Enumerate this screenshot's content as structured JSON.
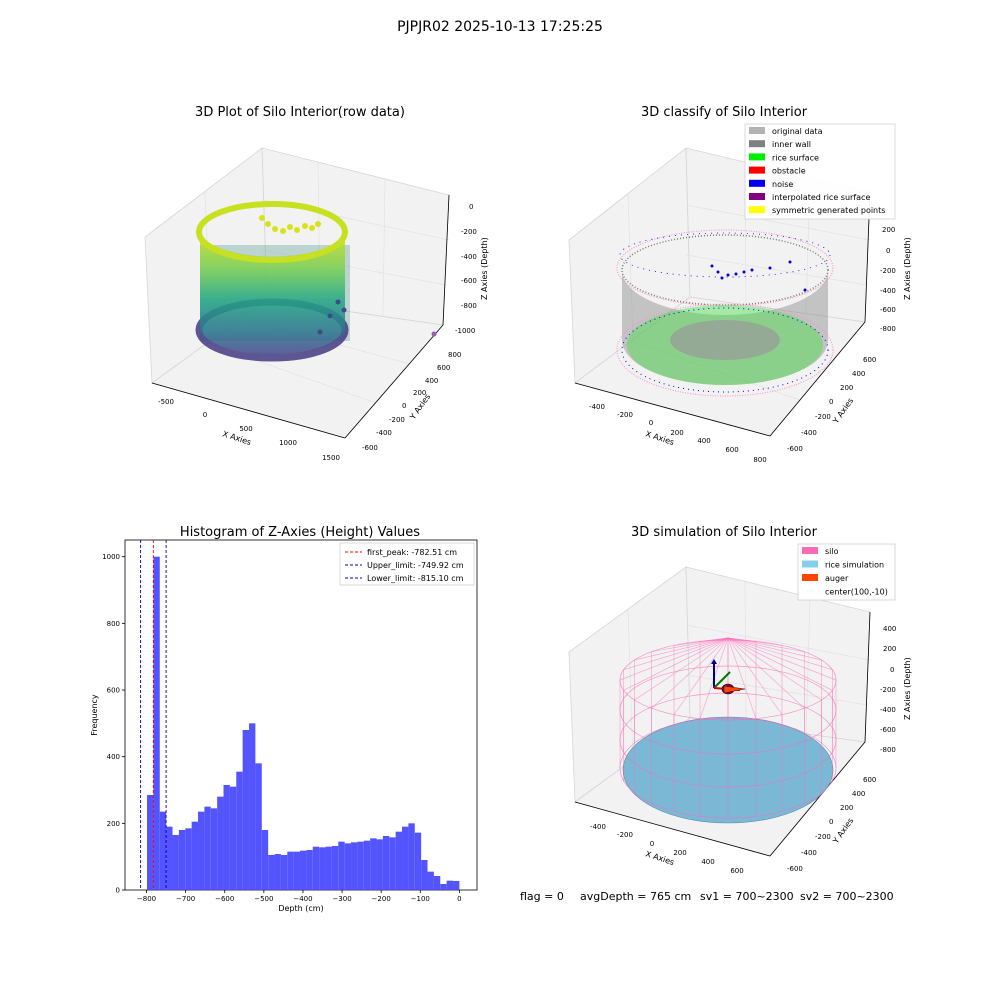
{
  "figure": {
    "suptitle": "PJPJR02 2025-10-13 17:25:25",
    "footer": {
      "flag": "flag = 0",
      "avg_depth": "avgDepth = 765 cm",
      "sv1": "sv1 = 700~2300",
      "sv2": "sv2 = 700~2300"
    }
  },
  "chart_data": [
    {
      "type": "scatter",
      "id": "raw",
      "title": "3D Plot of Silo Interior(row data)",
      "xlabel": "X Axies",
      "ylabel": "Y Axies",
      "zlabel": "Z Axies (Depth)",
      "xticks": [
        "-500",
        "0",
        "500",
        "1000",
        "1500"
      ],
      "yticks": [
        "-600",
        "-400",
        "-200",
        "0",
        "200",
        "400",
        "600",
        "800"
      ],
      "zticks": [
        "0",
        "-200",
        "-400",
        "-600",
        "-800",
        "-1000"
      ],
      "colormap": "viridis",
      "description_points": "cylindrical wall of points colored by depth (yellow top, purple bottom), radius ~ 600 cm around (100,-10)"
    },
    {
      "type": "scatter",
      "id": "classify",
      "title": "3D classify of Silo Interior",
      "xlabel": "X Axies",
      "ylabel": "Y Axies",
      "zlabel": "Z Axies (Depth)",
      "xticks": [
        "-400",
        "-200",
        "0",
        "200",
        "400",
        "600",
        "800"
      ],
      "yticks": [
        "-600",
        "-400",
        "-200",
        "0",
        "200",
        "400",
        "600"
      ],
      "zticks": [
        "200",
        "0",
        "-200",
        "-400",
        "-600",
        "-800"
      ],
      "legend_placement": "top-right",
      "legend": [
        {
          "label": "original data",
          "color": "#b3b3b3"
        },
        {
          "label": "inner wall",
          "color": "#808080"
        },
        {
          "label": "rice surface",
          "color": "#00ee00"
        },
        {
          "label": "obstacle",
          "color": "#ff0000"
        },
        {
          "label": "noise",
          "color": "#0000ee"
        },
        {
          "label": "interpolated rice surface",
          "color": "#800080"
        },
        {
          "label": "symmetric generated points",
          "color": "#ffff00"
        }
      ]
    },
    {
      "type": "bar",
      "id": "hist",
      "title": "Histogram of Z-Axies (Height) Values",
      "xlabel": "Depth (cm)",
      "ylabel": "Frequency",
      "xlim": [
        -855,
        45
      ],
      "ylim": [
        0,
        1050
      ],
      "xticks": [
        -800,
        -700,
        -600,
        -500,
        -400,
        -300,
        -200,
        -100,
        0
      ],
      "yticks": [
        0,
        200,
        400,
        600,
        800,
        1000
      ],
      "bar_color": "#4b4bff",
      "bin_start": -815,
      "bin_width": 16.3,
      "values": [
        0,
        285,
        1000,
        235,
        190,
        165,
        180,
        185,
        205,
        235,
        250,
        245,
        280,
        315,
        310,
        355,
        480,
        500,
        380,
        180,
        105,
        108,
        105,
        115,
        115,
        118,
        120,
        130,
        128,
        130,
        132,
        145,
        140,
        143,
        145,
        148,
        155,
        152,
        162,
        158,
        175,
        190,
        200,
        172,
        90,
        55,
        42,
        18,
        28,
        27
      ],
      "vlines": [
        {
          "label": "first_peak: -782.51 cm",
          "x": -782.51,
          "color": "#ff0000"
        },
        {
          "label": "Upper_limit: -749.92 cm",
          "x": -749.92,
          "color": "#0000aa"
        },
        {
          "label": "Lower_limit: -815.10 cm",
          "x": -815.1,
          "color": "#0000aa"
        }
      ],
      "legend_placement": "top-right"
    },
    {
      "type": "scatter",
      "id": "sim",
      "title": "3D simulation of Silo Interior",
      "xlabel": "X Axies",
      "ylabel": "Y Axies",
      "zlabel": "Z Axies (Depth)",
      "xticks": [
        "-400",
        "-200",
        "0",
        "200",
        "400",
        "600"
      ],
      "yticks": [
        "-600",
        "-400",
        "-200",
        "0",
        "200",
        "400",
        "600"
      ],
      "zticks": [
        "400",
        "200",
        "0",
        "-200",
        "-400",
        "-600",
        "-800"
      ],
      "legend_placement": "top-right",
      "legend": [
        {
          "label": "silo",
          "color": "#ff69b4"
        },
        {
          "label": "rice simulation",
          "color": "#87ceeb"
        },
        {
          "label": "auger",
          "color": "#ff4500"
        },
        {
          "label": "center(100,-10)",
          "color": ""
        }
      ]
    }
  ]
}
